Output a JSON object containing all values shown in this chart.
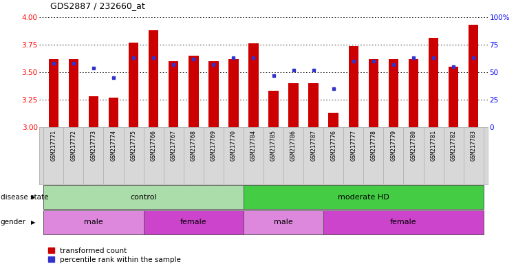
{
  "title": "GDS2887 / 232660_at",
  "samples": [
    "GSM217771",
    "GSM217772",
    "GSM217773",
    "GSM217774",
    "GSM217775",
    "GSM217766",
    "GSM217767",
    "GSM217768",
    "GSM217769",
    "GSM217770",
    "GSM217784",
    "GSM217785",
    "GSM217786",
    "GSM217787",
    "GSM217776",
    "GSM217777",
    "GSM217778",
    "GSM217779",
    "GSM217780",
    "GSM217781",
    "GSM217782",
    "GSM217783"
  ],
  "bar_values": [
    3.62,
    3.62,
    3.28,
    3.27,
    3.77,
    3.88,
    3.6,
    3.65,
    3.6,
    3.62,
    3.76,
    3.33,
    3.4,
    3.4,
    3.13,
    3.74,
    3.62,
    3.62,
    3.62,
    3.81,
    3.55,
    3.93
  ],
  "dot_values": [
    3.58,
    3.58,
    3.54,
    3.45,
    3.63,
    3.63,
    3.57,
    3.62,
    3.57,
    3.63,
    3.63,
    3.47,
    3.52,
    3.52,
    3.35,
    3.6,
    3.6,
    3.57,
    3.63,
    3.63,
    3.55,
    3.63
  ],
  "ylim_left": [
    3.0,
    4.0
  ],
  "ylim_right": [
    0,
    100
  ],
  "yticks_left": [
    3.0,
    3.25,
    3.5,
    3.75,
    4.0
  ],
  "yticks_right": [
    0,
    25,
    50,
    75,
    100
  ],
  "bar_color": "#cc0000",
  "dot_color": "#3333cc",
  "bar_width": 0.5,
  "groups": [
    {
      "label": "control",
      "start": 0,
      "end": 10,
      "color": "#aaddaa"
    },
    {
      "label": "moderate HD",
      "start": 10,
      "end": 22,
      "color": "#44cc44"
    }
  ],
  "gender_groups": [
    {
      "label": "male",
      "start": 0,
      "end": 5,
      "color": "#dd88dd"
    },
    {
      "label": "female",
      "start": 5,
      "end": 10,
      "color": "#cc44cc"
    },
    {
      "label": "male",
      "start": 10,
      "end": 14,
      "color": "#dd88dd"
    },
    {
      "label": "female",
      "start": 14,
      "end": 22,
      "color": "#cc44cc"
    }
  ],
  "disease_state_label": "disease state",
  "gender_label": "gender",
  "legend_bar_label": "transformed count",
  "legend_dot_label": "percentile rank within the sample",
  "xtick_bg": "#d8d8d8",
  "spine_color": "#888888"
}
